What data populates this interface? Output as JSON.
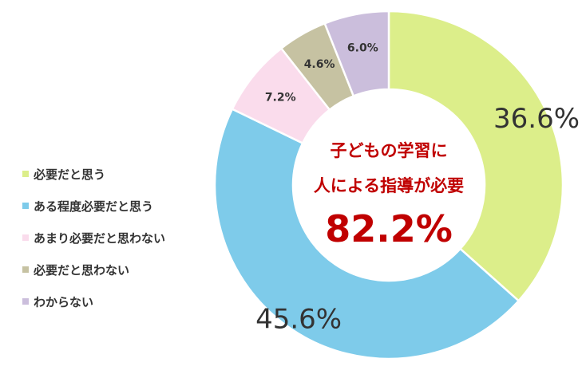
{
  "chart_data": {
    "type": "pie",
    "categories": [
      "必要だと思う",
      "ある程度必要だと思う",
      "あまり必要だと思わない",
      "必要だと思わない",
      "わからない"
    ],
    "values": [
      36.6,
      45.6,
      7.2,
      4.6,
      6.0
    ],
    "value_labels": [
      "36.6%",
      "45.6%",
      "7.2%",
      "4.6%",
      "6.0%"
    ],
    "colors": [
      "#dcee8a",
      "#7ecbea",
      "#fadcec",
      "#c6c2a2",
      "#cbbedc"
    ],
    "legend_position": "left",
    "donut": true
  },
  "center": {
    "line1": "子どもの学習に",
    "line2": "人による指導が必要",
    "total": "82.2%",
    "color": "#c00000"
  }
}
